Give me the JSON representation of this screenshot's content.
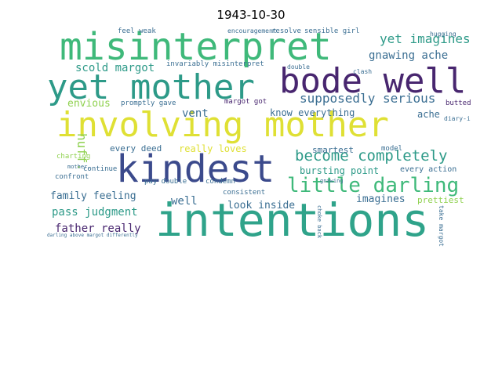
{
  "title": "1943-10-30",
  "colors": {
    "navy": "#3b4a8c",
    "purple": "#48266f",
    "blue": "#3a6e92",
    "teal": "#2d9a88",
    "green": "#3fb97a",
    "lime": "#8fd14f",
    "yellow": "#dfe034",
    "seagreen": "#2fa38a",
    "darkblue": "#2f4d7e"
  },
  "words": [
    {
      "text": "intentions",
      "color": "seagreen"
    },
    {
      "text": "involving mother",
      "color": "yellow"
    },
    {
      "text": "kindest",
      "color": "navy"
    },
    {
      "text": "misinterpret",
      "color": "green"
    },
    {
      "text": "yet mother",
      "color": "teal"
    },
    {
      "text": "bode well",
      "color": "purple"
    },
    {
      "text": "little darling",
      "color": "green"
    },
    {
      "text": "become completely",
      "color": "teal"
    },
    {
      "text": "supposedly serious",
      "color": "blue"
    },
    {
      "text": "yet imagines",
      "color": "teal"
    },
    {
      "text": "gnawing ache",
      "color": "blue"
    },
    {
      "text": "scold margot",
      "color": "teal"
    },
    {
      "text": "envious",
      "color": "lime"
    },
    {
      "text": "huff.",
      "color": "lime"
    },
    {
      "text": "family feeling",
      "color": "blue"
    },
    {
      "text": "pass judgment",
      "color": "teal"
    },
    {
      "text": "father really",
      "color": "purple"
    },
    {
      "text": "well",
      "color": "blue"
    },
    {
      "text": "look inside",
      "color": "blue"
    },
    {
      "text": "imagines",
      "color": "blue"
    },
    {
      "text": "bursting point",
      "color": "teal"
    },
    {
      "text": "vent",
      "color": "blue"
    },
    {
      "text": "know everything",
      "color": "blue"
    },
    {
      "text": "ache",
      "color": "blue"
    },
    {
      "text": "really loves",
      "color": "yellow"
    },
    {
      "text": "every deed",
      "color": "blue"
    },
    {
      "text": "smartest",
      "color": "blue"
    },
    {
      "text": "prettiest",
      "color": "lime"
    },
    {
      "text": "every action",
      "color": "blue"
    },
    {
      "text": "sensible girl",
      "color": "blue"
    },
    {
      "text": "resolve",
      "color": "blue"
    },
    {
      "text": "feel weak",
      "color": "blue"
    },
    {
      "text": "invariably misinterpret",
      "color": "blue"
    },
    {
      "text": "promptly gave",
      "color": "blue"
    },
    {
      "text": "margot got",
      "color": "purple"
    },
    {
      "text": "consistent",
      "color": "blue"
    },
    {
      "text": "condemn",
      "color": "blue"
    },
    {
      "text": "pay double",
      "color": "blue"
    },
    {
      "text": "continue",
      "color": "blue"
    },
    {
      "text": "confront",
      "color": "blue"
    },
    {
      "text": "charting",
      "color": "lime"
    },
    {
      "text": "model",
      "color": "blue"
    },
    {
      "text": "butted",
      "color": "purple"
    },
    {
      "text": "diary-i",
      "color": "blue"
    },
    {
      "text": "double",
      "color": "blue"
    },
    {
      "text": "hugging",
      "color": "blue"
    },
    {
      "text": "encouragement",
      "color": "blue"
    },
    {
      "text": "clash",
      "color": "blue"
    },
    {
      "text": "take margot",
      "color": "blue"
    },
    {
      "text": "mother.",
      "color": "blue"
    },
    {
      "text": "gnawing",
      "color": "blue"
    },
    {
      "text": "choke back",
      "color": "blue"
    },
    {
      "text": "darling above margot differently",
      "color": "blue"
    }
  ]
}
